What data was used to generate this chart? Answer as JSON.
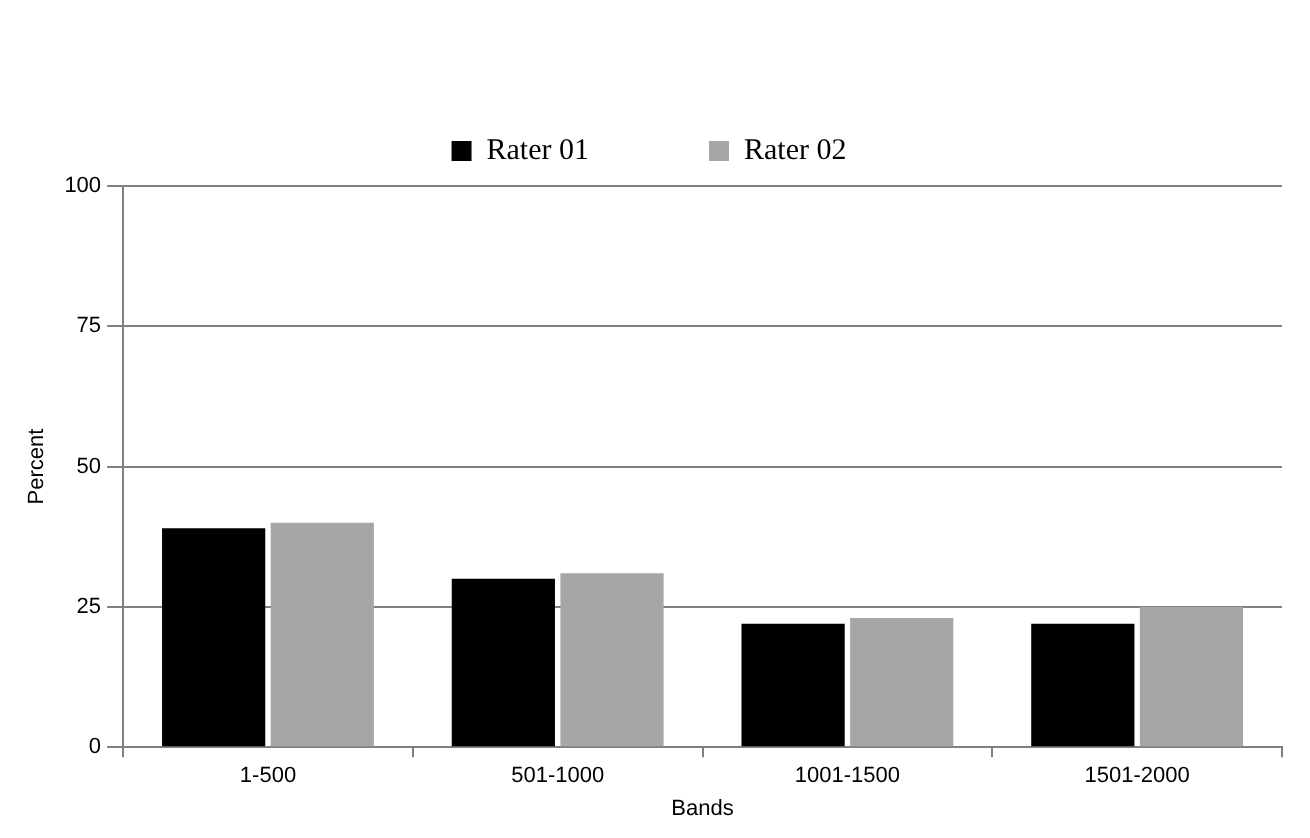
{
  "chart_data": {
    "type": "bar",
    "xlabel": "Bands",
    "ylabel": "Percent",
    "categories": [
      "1-500",
      "501-1000",
      "1001-1500",
      "1501-2000"
    ],
    "series": [
      {
        "name": "Rater 01",
        "color": "#000000",
        "values": [
          39,
          30,
          22,
          22
        ]
      },
      {
        "name": "Rater 02",
        "color": "#a6a6a6",
        "values": [
          40,
          31,
          23,
          25
        ]
      }
    ],
    "ylim": [
      0,
      100
    ],
    "yticks": [
      0,
      25,
      50,
      75,
      100
    ],
    "grid": "y",
    "legend": "top"
  }
}
